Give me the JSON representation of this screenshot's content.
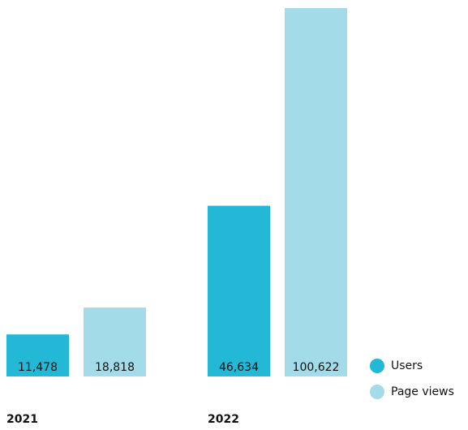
{
  "chart_data": {
    "type": "bar",
    "categories": [
      "2021",
      "2022"
    ],
    "series": [
      {
        "name": "Users",
        "color": "#22b8d6",
        "values": [
          11478,
          46634
        ],
        "value_labels": [
          "11,478",
          "46,634"
        ]
      },
      {
        "name": "Page views",
        "color": "#a3dbe8",
        "values": [
          18818,
          100622
        ],
        "value_labels": [
          "18,818",
          "100,622"
        ]
      }
    ],
    "legend": "bottom-right"
  }
}
